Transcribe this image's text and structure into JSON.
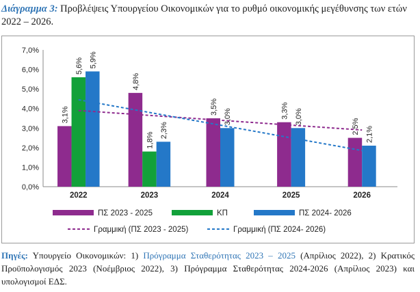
{
  "caption": {
    "lead": "Διάγραμμα 3:",
    "text": " Προβλέψεις Υπουργείου Οικονομικών για το ρυθμό οικονομικής μεγέθυνσης των ετών 2022 – 2026."
  },
  "sources": {
    "lead": "Πηγές:",
    "part1": " Υπουργείο Οικονομικών: 1) ",
    "link": "Πρόγραμμα Σταθερότητας 2023 – 2025",
    "part2": " (Απρίλιος 2022), 2) Κρατικός Προϋπολογισμός 2023 (Νοέμβριος 2022), 3) Πρόγραμμα Σταθερότητας 2024-2026 (Απρίλιος 2023) και υπολογισμοί ΕΔΣ."
  },
  "chart_data": {
    "type": "bar",
    "categories": [
      "2022",
      "2023",
      "2024",
      "2025",
      "2026"
    ],
    "series": [
      {
        "name": "ΠΣ 2023 - 2025",
        "color": "#8e2b8e",
        "values": [
          3.1,
          4.8,
          3.5,
          3.3,
          2.5
        ],
        "labels": [
          "3,1%",
          "4,8%",
          "3,5%",
          "3,3%",
          "2,5%"
        ]
      },
      {
        "name": "ΚΠ",
        "color": "#12a13a",
        "values": [
          5.6,
          1.8,
          null,
          null,
          null
        ],
        "labels": [
          "5,6%",
          "1,8%",
          "",
          "",
          ""
        ]
      },
      {
        "name": "ΠΣ 2024- 2026",
        "color": "#2478c8",
        "values": [
          5.9,
          2.3,
          3.0,
          3.0,
          2.1
        ],
        "labels": [
          "5,9%",
          "2,3%",
          "3,0%",
          "3,0%",
          "2,1%"
        ]
      }
    ],
    "trendlines": [
      {
        "name": "Γραμμική (ΠΣ 2023 - 2025)",
        "color": "#8e2b8e",
        "from": [
          0,
          3.9
        ],
        "to": [
          4,
          2.9
        ]
      },
      {
        "name": "Γραμμική (ΠΣ 2024- 2026)",
        "color": "#2478c8",
        "from": [
          0,
          4.45
        ],
        "to": [
          4,
          1.85
        ]
      }
    ],
    "yticks": [
      "0,0%",
      "1,0%",
      "2,0%",
      "3,0%",
      "4,0%",
      "5,0%",
      "6,0%",
      "7,0%"
    ],
    "ylim": [
      0,
      7
    ],
    "grid": false,
    "legend": "bottom"
  }
}
